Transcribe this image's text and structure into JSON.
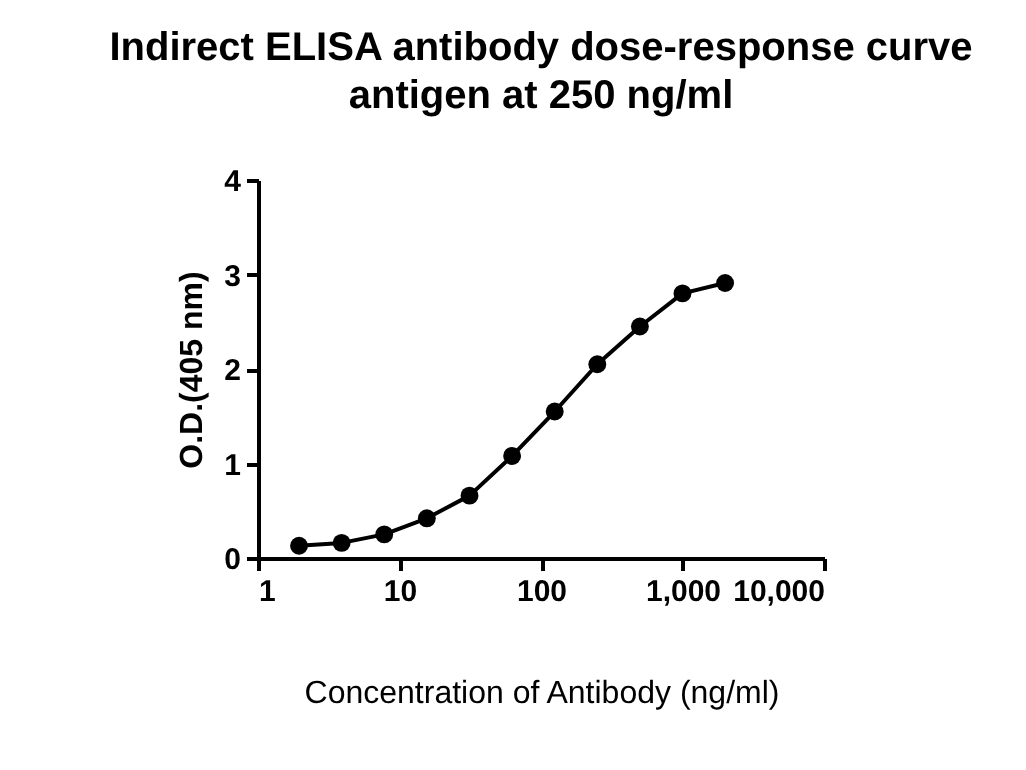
{
  "chart_data": {
    "type": "line",
    "title": "Indirect ELISA antibody dose-response curve",
    "subtitle": "antigen at 250 ng/ml",
    "xlabel": "Concentration of Antibody (ng/ml)",
    "ylabel": "O.D.(405 nm)",
    "x": [
      1.95,
      3.9,
      7.8,
      15.6,
      31.25,
      62.5,
      125,
      250,
      500,
      1000,
      2000
    ],
    "series": [
      {
        "color": "#000000",
        "values": [
          0.13,
          0.16,
          0.25,
          0.42,
          0.66,
          1.08,
          1.55,
          2.05,
          2.45,
          2.8,
          2.91
        ]
      }
    ],
    "log": "x",
    "xlim": [
      1,
      10000
    ],
    "xticks": [
      1,
      10,
      100,
      {
        "value": 1000,
        "label": "1,000"
      },
      {
        "value": 10000,
        "label": "10,000"
      }
    ],
    "ylim": [
      0,
      4
    ],
    "yticks": [
      0,
      1,
      2,
      3,
      4
    ],
    "grid": false,
    "marker": "circle",
    "line_style": "solid"
  }
}
